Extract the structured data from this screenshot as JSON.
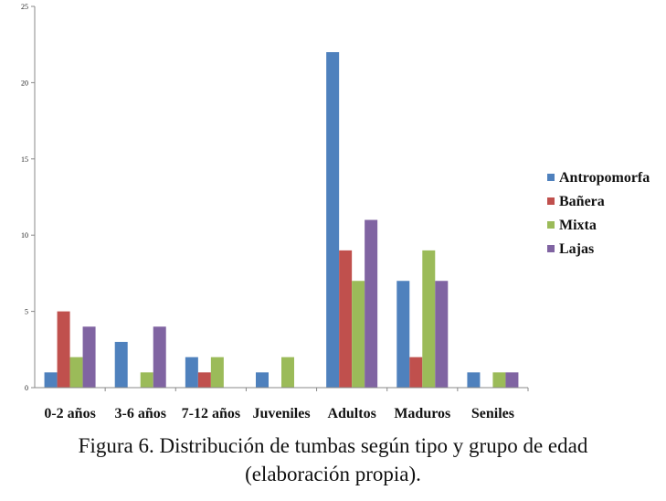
{
  "caption": {
    "line1": "Figura 6. Distribución de tumbas según tipo y grupo de edad",
    "line2": "(elaboración propia)."
  },
  "chart_data": {
    "type": "bar",
    "categories": [
      "0-2 años",
      "3-6 años",
      "7-12 años",
      "Juveniles",
      "Adultos",
      "Maduros",
      "Seniles"
    ],
    "series": [
      {
        "name": "Antropomorfa",
        "color": "#4F81BD",
        "values": [
          1,
          3,
          2,
          1,
          22,
          7,
          1
        ]
      },
      {
        "name": "Bañera",
        "color": "#C0504D",
        "values": [
          5,
          0,
          1,
          0,
          9,
          2,
          0
        ]
      },
      {
        "name": "Mixta",
        "color": "#9BBB59",
        "values": [
          2,
          1,
          2,
          2,
          7,
          9,
          1
        ]
      },
      {
        "name": "Lajas",
        "color": "#8064A2",
        "values": [
          4,
          4,
          0,
          0,
          11,
          7,
          1
        ]
      }
    ],
    "ylim": [
      0,
      25
    ],
    "yticks": [
      0,
      5,
      10,
      15,
      20,
      25
    ],
    "legend": "right",
    "grid": false
  }
}
